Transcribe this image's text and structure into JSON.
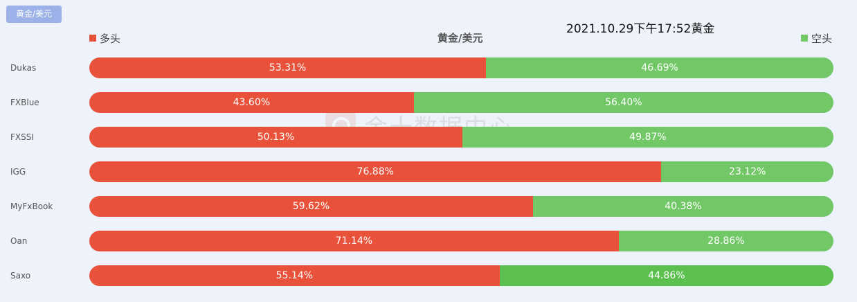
{
  "tab": {
    "label": "黄金/美元"
  },
  "legend": {
    "long": {
      "label": "多头",
      "color": "#e8523a"
    },
    "short": {
      "label": "空头",
      "color": "#72c866"
    }
  },
  "header": {
    "title": "黄金/美元",
    "timestamp": "2021.10.29下午17:52黄金"
  },
  "watermark": {
    "text": "金十数据中心"
  },
  "chart_data": {
    "type": "bar",
    "orientation": "horizontal-stacked-100",
    "title": "黄金/美元",
    "categories": [
      "Dukas",
      "FXBlue",
      "FXSSI",
      "IGG",
      "MyFxBook",
      "Oan",
      "Saxo"
    ],
    "series": [
      {
        "name": "多头",
        "color": "#e8523a",
        "values": [
          53.31,
          43.6,
          50.13,
          76.88,
          59.62,
          71.14,
          55.14
        ]
      },
      {
        "name": "空头",
        "color": "#72c866",
        "values": [
          46.69,
          56.4,
          49.87,
          23.12,
          40.38,
          28.86,
          44.86
        ]
      }
    ],
    "data_labels": [
      [
        "53.31%",
        "46.69%"
      ],
      [
        "43.60%",
        "56.40%"
      ],
      [
        "50.13%",
        "49.87%"
      ],
      [
        "76.88%",
        "23.12%"
      ],
      [
        "59.62%",
        "40.38%"
      ],
      [
        "71.14%",
        "28.86%"
      ],
      [
        "55.14%",
        "44.86%"
      ]
    ],
    "xlim": [
      0,
      100
    ],
    "legend_position": "top",
    "grid": false
  }
}
